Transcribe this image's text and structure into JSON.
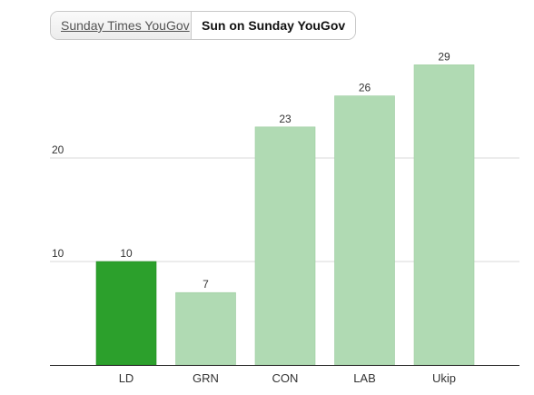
{
  "tabs": [
    {
      "label": "Sunday Times YouGov",
      "active": false
    },
    {
      "label": "Sun on Sunday YouGov",
      "active": true
    }
  ],
  "colors": {
    "highlight_bar": "#2ca02c",
    "bar": "#b0dab3",
    "gridline": "#d9d9d9",
    "axis": "#333333",
    "text": "#333333"
  },
  "chart_data": {
    "type": "bar",
    "categories": [
      "LD",
      "GRN",
      "CON",
      "LAB",
      "Ukip"
    ],
    "values": [
      10,
      7,
      23,
      26,
      29
    ],
    "highlight_index": 0,
    "ylim": [
      0,
      30
    ],
    "yticks": [
      10,
      20
    ],
    "grid": true,
    "data_labels": true,
    "title": "",
    "xlabel": "",
    "ylabel": ""
  }
}
